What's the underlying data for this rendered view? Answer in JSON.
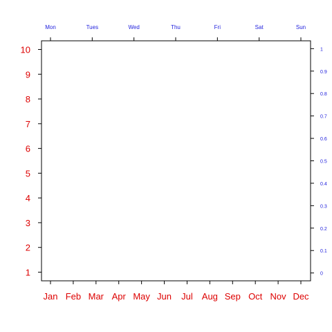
{
  "chart_data": {
    "type": "scatter",
    "title": "",
    "xlabel": "",
    "ylabel": "",
    "grid": false,
    "series": [],
    "axes": {
      "bottom": {
        "labels": [
          "Jan",
          "Feb",
          "Mar",
          "Apr",
          "May",
          "Jun",
          "Jul",
          "Aug",
          "Sep",
          "Oct",
          "Nov",
          "Dec"
        ],
        "color": "#dd0000"
      },
      "top": {
        "labels": [
          "Mon",
          "Tues",
          "Wed",
          "Thu",
          "Fri",
          "Sat",
          "Sun"
        ],
        "color": "#2222dd"
      },
      "left": {
        "ticks": [
          1,
          2,
          3,
          4,
          5,
          6,
          7,
          8,
          9,
          10
        ],
        "ylim": [
          0.65,
          10.35
        ],
        "color": "#dd0000"
      },
      "right": {
        "ticks": [
          "0",
          "0.1",
          "0.2",
          "0.3",
          "0.4",
          "0.5",
          "0.6",
          "0.7",
          "0.8",
          "0.9",
          "1"
        ],
        "ylim": [
          -0.035,
          1.035
        ],
        "color": "#2222dd"
      }
    }
  }
}
